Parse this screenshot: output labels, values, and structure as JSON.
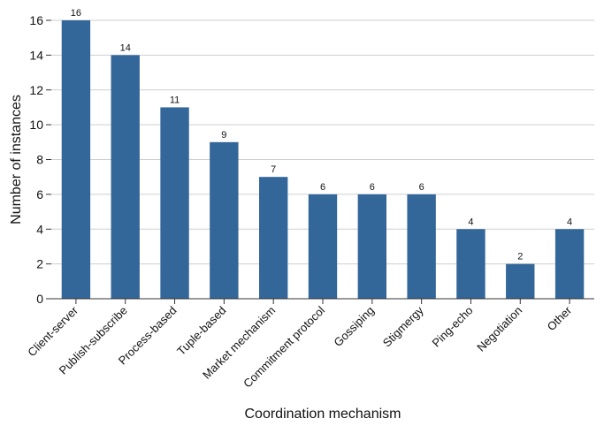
{
  "chart_data": {
    "type": "bar",
    "title": "",
    "xlabel": "Coordination mechanism",
    "ylabel": "Number of instances",
    "categories": [
      "Client-server",
      "Publish-subscribe",
      "Process-based",
      "Tuple-based",
      "Market mechanism",
      "Commitment protocol",
      "Gossiping",
      "Stigmergy",
      "Ping-echo",
      "Negotiation",
      "Other"
    ],
    "values": [
      16,
      14,
      11,
      9,
      7,
      6,
      6,
      6,
      4,
      2,
      4
    ],
    "data_labels": [
      "16",
      "14",
      "11",
      "9",
      "7",
      "6",
      "6",
      "6",
      "4",
      "2",
      "4"
    ],
    "ylim": [
      0,
      16
    ],
    "yticks": [
      0,
      2,
      4,
      6,
      8,
      10,
      12,
      14,
      16
    ],
    "grid": true,
    "legend": "none",
    "bar_color": "#336699"
  }
}
